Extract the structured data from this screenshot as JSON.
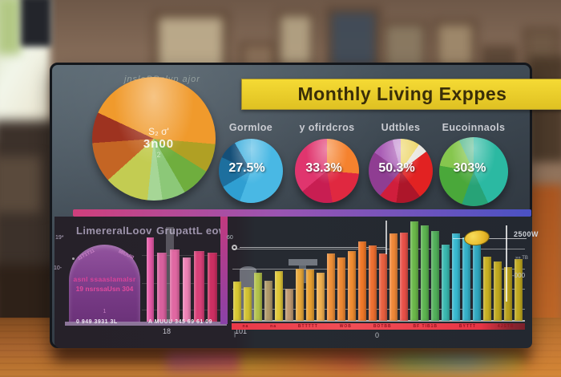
{
  "header": {
    "title": "Monthly Living Exppes",
    "watermark": "jnsloBPnlyp ajor"
  },
  "bottom_left": {
    "dome_title": "LimereralLoov",
    "bars_title": "GrupattL eow",
    "tick_top": "19*",
    "tick_mid": "10-",
    "label_a": "18",
    "label_b": "101"
  },
  "chart_data": [
    {
      "id": "main_pie",
      "type": "pie",
      "title": "jnsloBPnlyp ajor",
      "center_labels": [
        "S₂ σ'",
        "3n00",
        "2"
      ],
      "slices": [
        {
          "color": "#f09a2c",
          "deg": 95
        },
        {
          "color": "#b0a024",
          "deg": 27
        },
        {
          "color": "#6fae3e",
          "deg": 28
        },
        {
          "color": "#8cc878",
          "deg": 22
        },
        {
          "color": "#a6d696",
          "deg": 14
        },
        {
          "color": "#c3cc52",
          "deg": 42
        },
        {
          "color": "#c46524",
          "deg": 38
        },
        {
          "color": "#9e3320",
          "deg": 29
        },
        {
          "color": "#f09a2c",
          "deg": 65
        }
      ]
    },
    {
      "id": "pie_gormloe",
      "type": "pie",
      "label": "Gormloe",
      "value_label": "27.5%",
      "slices": [
        {
          "color": "#49b8e4",
          "deg": 200
        },
        {
          "color": "#2f9fd2",
          "deg": 40
        },
        {
          "color": "#1d6f9e",
          "deg": 55
        },
        {
          "color": "#154f78",
          "deg": 35
        },
        {
          "color": "#3aaede",
          "deg": 30
        }
      ]
    },
    {
      "id": "pie_ofirdcros",
      "type": "pie",
      "label": "y ofirdcros",
      "value_label": "33.3%",
      "slices": [
        {
          "color": "#f5822e",
          "deg": 95
        },
        {
          "color": "#e02840",
          "deg": 75
        },
        {
          "color": "#c81e52",
          "deg": 60
        },
        {
          "color": "#e0356e",
          "deg": 130
        }
      ]
    },
    {
      "id": "pie_udtbles",
      "type": "pie",
      "label": "Udtbles",
      "value_label": "50.3%",
      "slices": [
        {
          "color": "#ecd565",
          "deg": 35
        },
        {
          "color": "#e9e6e0",
          "deg": 18
        },
        {
          "color": "#e22222",
          "deg": 90
        },
        {
          "color": "#ad162a",
          "deg": 45
        },
        {
          "color": "#d01e3c",
          "deg": 32
        },
        {
          "color": "#8f3d92",
          "deg": 85
        },
        {
          "color": "#a95cb5",
          "deg": 40
        },
        {
          "color": "#c490d2",
          "deg": 15
        }
      ]
    },
    {
      "id": "pie_eucoinnaols",
      "type": "pie",
      "label": "Eucoinnaols",
      "value_label": "303%",
      "slices": [
        {
          "color": "#2bb9a2",
          "deg": 155
        },
        {
          "color": "#27a377",
          "deg": 45
        },
        {
          "color": "#4aa83a",
          "deg": 80
        },
        {
          "color": "#86c64e",
          "deg": 55
        },
        {
          "color": "#5fbd92",
          "deg": 25
        }
      ]
    },
    {
      "id": "dome",
      "type": "area",
      "title": "LimereralLoov",
      "color": "#7e4190",
      "arc_left": "11T1T11",
      "arc_right": "MIUUIII",
      "inner_labels": [
        "asnl ssaaslamalsr",
        "19 nsrssaUsn 304",
        "1"
      ],
      "axis_label": "0 949 3931 3L"
    },
    {
      "id": "pink_bars",
      "type": "bar",
      "title": "GrupattL eow",
      "axis_label": "A MUUU 345 69 61 09",
      "bars": [
        {
          "c": "#e85aa8",
          "w": 9,
          "h": 105
        },
        {
          "c": "#d8609e",
          "w": 12,
          "h": 86
        },
        {
          "c": "#e068a2",
          "w": 12,
          "h": 90
        },
        {
          "c": "#ee82b6",
          "w": 10,
          "h": 80
        },
        {
          "c": "#d84078",
          "w": 13,
          "h": 88
        },
        {
          "c": "#cc2f62",
          "w": 12,
          "h": 86
        },
        {
          "c": "#c42a5c",
          "w": 9,
          "h": 94
        }
      ]
    },
    {
      "id": "rainbow_bars",
      "type": "bar",
      "marker_label": "60",
      "right_axis_labels": [
        "2500W",
        "»» TB",
        "-000"
      ],
      "strip_segments": [
        "na",
        "na",
        "BTTTTT",
        "WOB",
        "BOTBB",
        "BF TIB1B",
        "BYTTT",
        "4JSTB"
      ],
      "below_labels": [
        "|",
        "0"
      ],
      "bars": [
        {
          "c": "#d8c832",
          "h": 49
        },
        {
          "c": "#d2c230",
          "h": 42
        },
        {
          "c": "#b2c24a",
          "h": 60
        },
        {
          "c": "#b09a6a",
          "h": 50
        },
        {
          "c": "#e0c838",
          "h": 62
        },
        {
          "c": "#c09a72",
          "h": 40
        },
        {
          "c": "#e8a83a",
          "h": 65
        },
        {
          "c": "#e8a030",
          "h": 64
        },
        {
          "c": "#f0b050",
          "h": 60
        },
        {
          "c": "#f09038",
          "h": 84
        },
        {
          "c": "#ee8832",
          "h": 79
        },
        {
          "c": "#f08c30",
          "h": 87
        },
        {
          "c": "#f07828",
          "h": 99
        },
        {
          "c": "#ee7030",
          "h": 94
        },
        {
          "c": "#e86040",
          "h": 84
        },
        {
          "c": "#f08838",
          "h": 109
        },
        {
          "c": "#e85048",
          "h": 110
        },
        {
          "c": "#6ab84a",
          "h": 124
        },
        {
          "c": "#5cb450",
          "h": 119
        },
        {
          "c": "#52b05a",
          "h": 112
        },
        {
          "c": "#3ab8b0",
          "h": 95
        },
        {
          "c": "#38b8d0",
          "h": 109
        },
        {
          "c": "#34b0c8",
          "h": 104
        },
        {
          "c": "#30a8c0",
          "h": 100
        },
        {
          "c": "#c8b022",
          "h": 80
        },
        {
          "c": "#c0a81e",
          "h": 74
        },
        {
          "c": "#b8a01c",
          "h": 67
        },
        {
          "c": "#c0a820",
          "h": 77
        }
      ]
    }
  ]
}
